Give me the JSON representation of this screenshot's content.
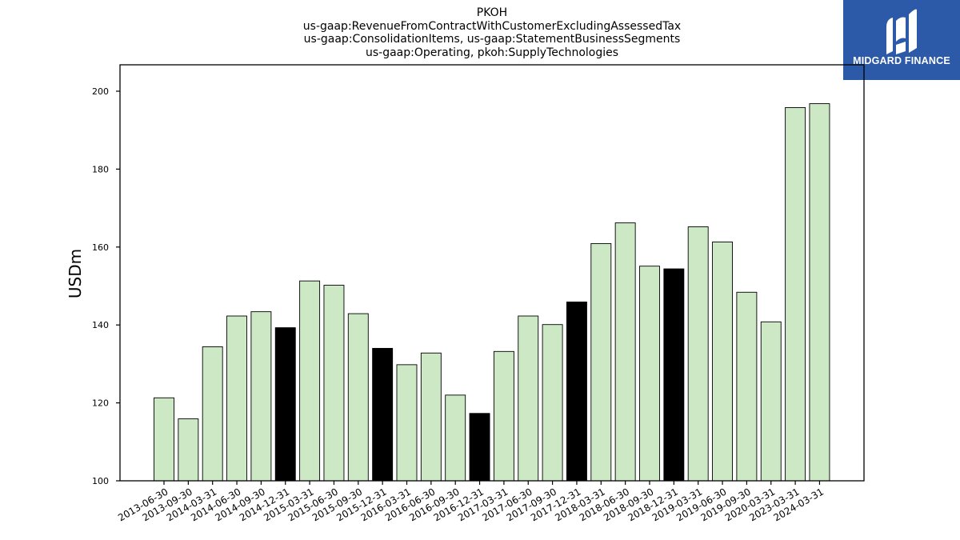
{
  "titles": {
    "line1": "PKOH",
    "line2": "us-gaap:RevenueFromContractWithCustomerExcludingAssessedTax",
    "line3": "us-gaap:ConsolidationItems, us-gaap:StatementBusinessSegments",
    "line4": "us-gaap:Operating, pkoh:SupplyTechnologies"
  },
  "logo": {
    "text": "MIDGARD FINANCE",
    "background": "#2d5aa8"
  },
  "colors": {
    "quarterly": "#cce8c5",
    "annual": "#000000"
  },
  "chart_data": {
    "type": "bar",
    "title": "PKOH",
    "ylabel": "USDm",
    "xlabel": "",
    "ylim": [
      100,
      207
    ],
    "yticks": [
      100,
      120,
      140,
      160,
      180,
      200
    ],
    "grid": false,
    "categories": [
      "2013-06-30",
      "2013-09-30",
      "2014-03-31",
      "2014-06-30",
      "2014-09-30",
      "2014-12-31",
      "2015-03-31",
      "2015-06-30",
      "2015-09-30",
      "2015-12-31",
      "2016-03-31",
      "2016-06-30",
      "2016-09-30",
      "2016-12-31",
      "2017-03-31",
      "2017-06-30",
      "2017-09-30",
      "2017-12-31",
      "2018-03-31",
      "2018-06-30",
      "2018-09-30",
      "2018-12-31",
      "2019-03-31",
      "2019-06-30",
      "2019-09-30",
      "2020-03-31",
      "2023-03-31",
      "2024-03-31"
    ],
    "values": [
      121.3,
      115.9,
      134.4,
      142.3,
      143.4,
      139.3,
      151.3,
      150.2,
      142.9,
      134.0,
      129.8,
      132.8,
      122.0,
      117.3,
      133.2,
      142.3,
      140.1,
      145.9,
      160.9,
      166.2,
      155.1,
      154.4,
      165.2,
      161.3,
      148.4,
      140.8,
      195.8,
      196.8
    ],
    "highlight": [
      false,
      false,
      false,
      false,
      false,
      true,
      false,
      false,
      false,
      true,
      false,
      false,
      false,
      true,
      false,
      false,
      false,
      true,
      false,
      false,
      false,
      true,
      false,
      false,
      false,
      false,
      false,
      false
    ]
  }
}
